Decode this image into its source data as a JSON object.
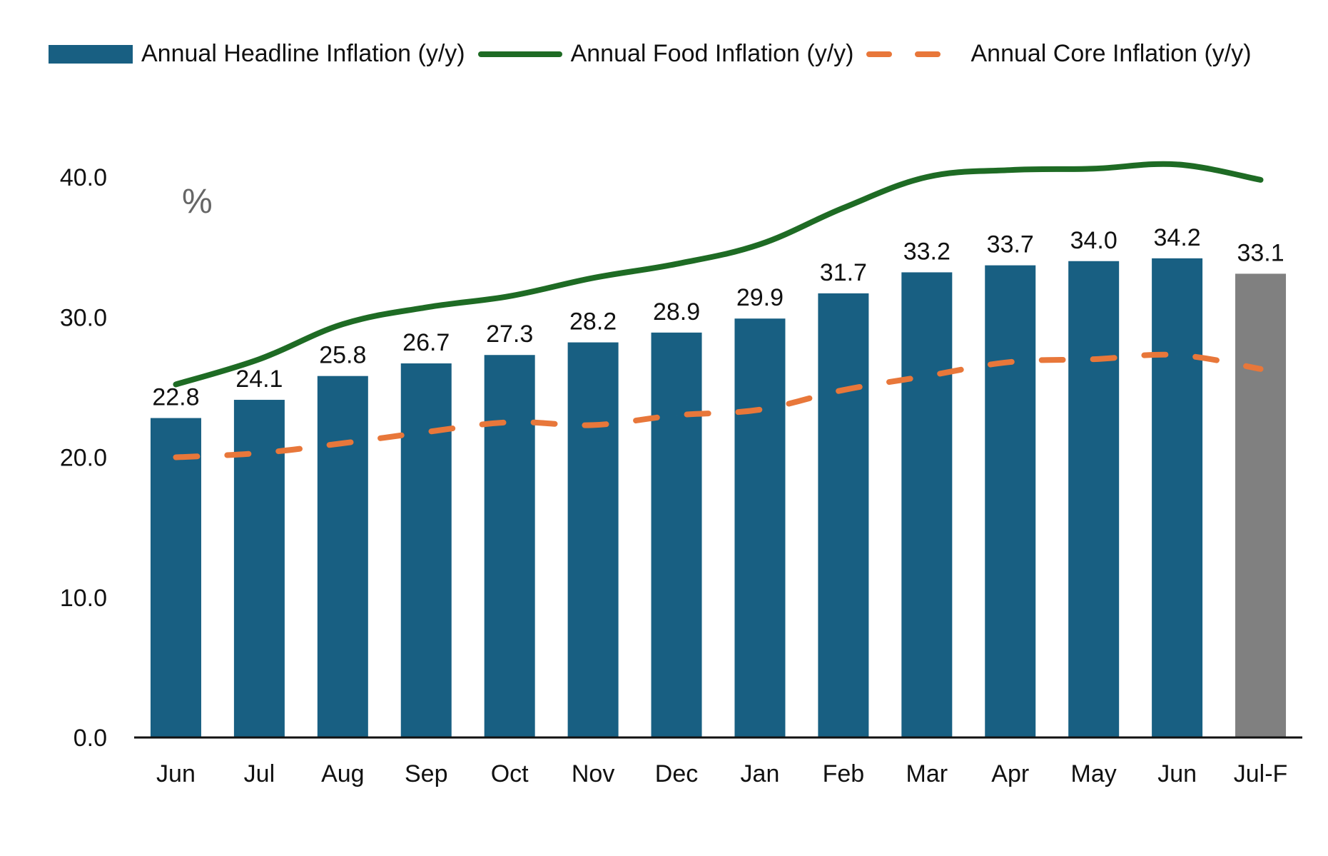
{
  "chart_data": {
    "type": "bar",
    "categories": [
      "Jun",
      "Jul",
      "Aug",
      "Sep",
      "Oct",
      "Nov",
      "Dec",
      "Jan",
      "Feb",
      "Mar",
      "Apr",
      "May",
      "Jun",
      "Jul-F"
    ],
    "series": [
      {
        "name": "Annual Headline Inflation (y/y)",
        "type": "bar",
        "values": [
          22.8,
          24.1,
          25.8,
          26.7,
          27.3,
          28.2,
          28.9,
          29.9,
          31.7,
          33.2,
          33.7,
          34.0,
          34.2,
          33.1
        ],
        "color": "#185F82",
        "forecast_color": "#808080",
        "data_labels": [
          "22.8",
          "24.1",
          "25.8",
          "26.7",
          "27.3",
          "28.2",
          "28.9",
          "29.9",
          "31.7",
          "33.2",
          "33.7",
          "34.0",
          "34.2",
          "33.1"
        ]
      },
      {
        "name": "Annual Food Inflation (y/y)",
        "type": "line",
        "values": [
          25.2,
          27.0,
          29.5,
          30.7,
          31.5,
          32.8,
          33.8,
          35.2,
          37.8,
          40.0,
          40.5,
          40.6,
          40.9,
          39.8
        ],
        "color": "#1E6B24"
      },
      {
        "name": "Annual Core Inflation (y/y)",
        "type": "line",
        "style": "dashed",
        "values": [
          20.0,
          20.3,
          21.0,
          21.8,
          22.5,
          22.3,
          23.0,
          23.4,
          24.8,
          25.8,
          26.8,
          27.0,
          27.3,
          26.3
        ],
        "color": "#E8773A"
      }
    ],
    "y_ticks": [
      "0.0",
      "10.0",
      "20.0",
      "30.0",
      "40.0"
    ],
    "ylim": [
      0,
      40
    ],
    "unit_label": "%",
    "grid": false,
    "legend_position": "top"
  }
}
